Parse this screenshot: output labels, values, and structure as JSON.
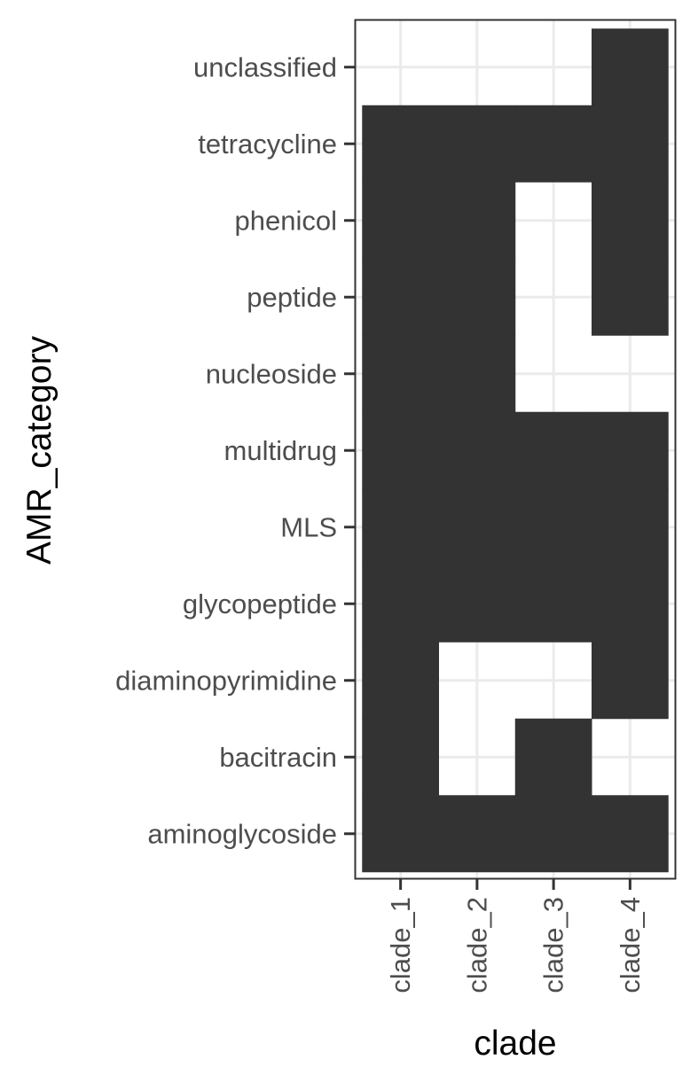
{
  "chart_data": {
    "type": "heatmap",
    "xlabel": "clade",
    "ylabel": "AMR_category",
    "x_categories": [
      "clade_1",
      "clade_2",
      "clade_3",
      "clade_4"
    ],
    "y_categories": [
      "aminoglycoside",
      "bacitracin",
      "diaminopyrimidine",
      "glycopeptide",
      "MLS",
      "multidrug",
      "nucleoside",
      "peptide",
      "phenicol",
      "tetracycline",
      "unclassified"
    ],
    "presence": [
      {
        "category": "unclassified",
        "values": [
          0,
          0,
          0,
          1
        ]
      },
      {
        "category": "tetracycline",
        "values": [
          1,
          1,
          1,
          1
        ]
      },
      {
        "category": "phenicol",
        "values": [
          1,
          1,
          0,
          1
        ]
      },
      {
        "category": "peptide",
        "values": [
          1,
          1,
          0,
          1
        ]
      },
      {
        "category": "nucleoside",
        "values": [
          1,
          1,
          0,
          0
        ]
      },
      {
        "category": "multidrug",
        "values": [
          1,
          1,
          1,
          1
        ]
      },
      {
        "category": "MLS",
        "values": [
          1,
          1,
          1,
          1
        ]
      },
      {
        "category": "glycopeptide",
        "values": [
          1,
          1,
          1,
          1
        ]
      },
      {
        "category": "diaminopyrimidine",
        "values": [
          1,
          0,
          0,
          1
        ]
      },
      {
        "category": "bacitracin",
        "values": [
          1,
          0,
          1,
          0
        ]
      },
      {
        "category": "aminoglycoside",
        "values": [
          1,
          1,
          1,
          1
        ]
      }
    ],
    "tile_color": "#333333",
    "grid": true,
    "legend": "none"
  },
  "colors": {
    "tile": "#333333",
    "panel_border": "#333333",
    "grid": "#ebebeb",
    "tick": "#333333",
    "tick_label": "#4d4d4d",
    "axis_title": "#000000",
    "background": "#ffffff"
  }
}
